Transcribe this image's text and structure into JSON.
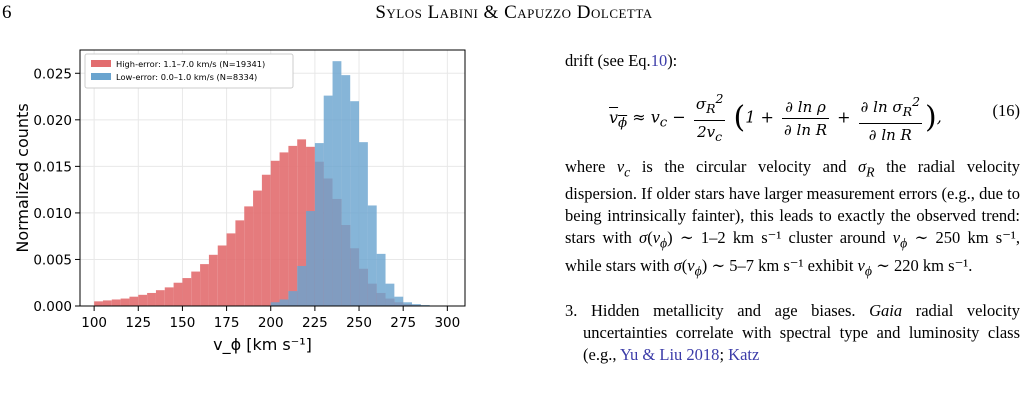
{
  "header": {
    "page_number": "6",
    "running_head": "Sylos Labini & Capuzzo Dolcetta"
  },
  "chart_data": {
    "type": "bar",
    "xlabel": "v_ϕ [km s⁻¹]",
    "ylabel": "Normalized counts",
    "xlim": [
      92,
      310
    ],
    "ylim": [
      0,
      0.0275
    ],
    "xticks": [
      100,
      125,
      150,
      175,
      200,
      225,
      250,
      275,
      300
    ],
    "yticks": [
      "0.000",
      "0.005",
      "0.010",
      "0.015",
      "0.020",
      "0.025"
    ],
    "bin_width": 5,
    "grid": true,
    "legend_position": "top-left",
    "series": [
      {
        "name": "High-error: 1.1–7.0 km/s (N=19341)",
        "color": "#e26d6f",
        "bin_start": 100,
        "values": [
          0.0005,
          0.0006,
          0.0007,
          0.0008,
          0.001,
          0.0012,
          0.0014,
          0.0017,
          0.002,
          0.0025,
          0.003,
          0.0037,
          0.0045,
          0.0055,
          0.0065,
          0.0078,
          0.0092,
          0.0107,
          0.0124,
          0.0141,
          0.0156,
          0.0165,
          0.0172,
          0.0179,
          0.0171,
          0.0155,
          0.0137,
          0.0115,
          0.0087,
          0.0062,
          0.004,
          0.0024,
          0.0014,
          0.0008,
          0.0004,
          0.0002,
          0.0001,
          0,
          0,
          0
        ]
      },
      {
        "name": "Low-error: 0.0–1.0 km/s (N=8334)",
        "color": "#6aa4cf",
        "bin_start": 200,
        "values": [
          0.0004,
          0.0007,
          0.0016,
          0.0043,
          0.0102,
          0.0175,
          0.0226,
          0.0263,
          0.0248,
          0.022,
          0.0176,
          0.0108,
          0.0056,
          0.0024,
          0.001,
          0.0004,
          0.0002,
          0.0001,
          0,
          0
        ]
      }
    ]
  },
  "text": {
    "drift_line": "drift (see Eq.",
    "drift_ref": "10",
    "drift_end": "):",
    "eq_number": "(16)",
    "para_where": "where v_c is the circular velocity and σ_R the radial velocity dispersion. If older stars have larger measurement errors (e.g., due to being intrinsically fainter), this leads to exactly the observed trend: stars with σ(v_ϕ) ∼ 1–2 km s⁻¹ cluster around v_ϕ ∼ 250 km s⁻¹, while stars with σ(v_ϕ) ∼ 5–7 km s⁻¹ exhibit v_ϕ ∼ 220 km s⁻¹.",
    "item3_label": "3.",
    "item3_a": "Hidden metallicity and age biases.",
    "item3_b": "Gaia",
    "item3_c": "radial velocity uncertainties correlate with spectral type and luminosity class (e.g.,",
    "item3_ref1": "Yu & Liu 2018",
    "item3_d": ";",
    "item3_ref2": "Katz"
  }
}
